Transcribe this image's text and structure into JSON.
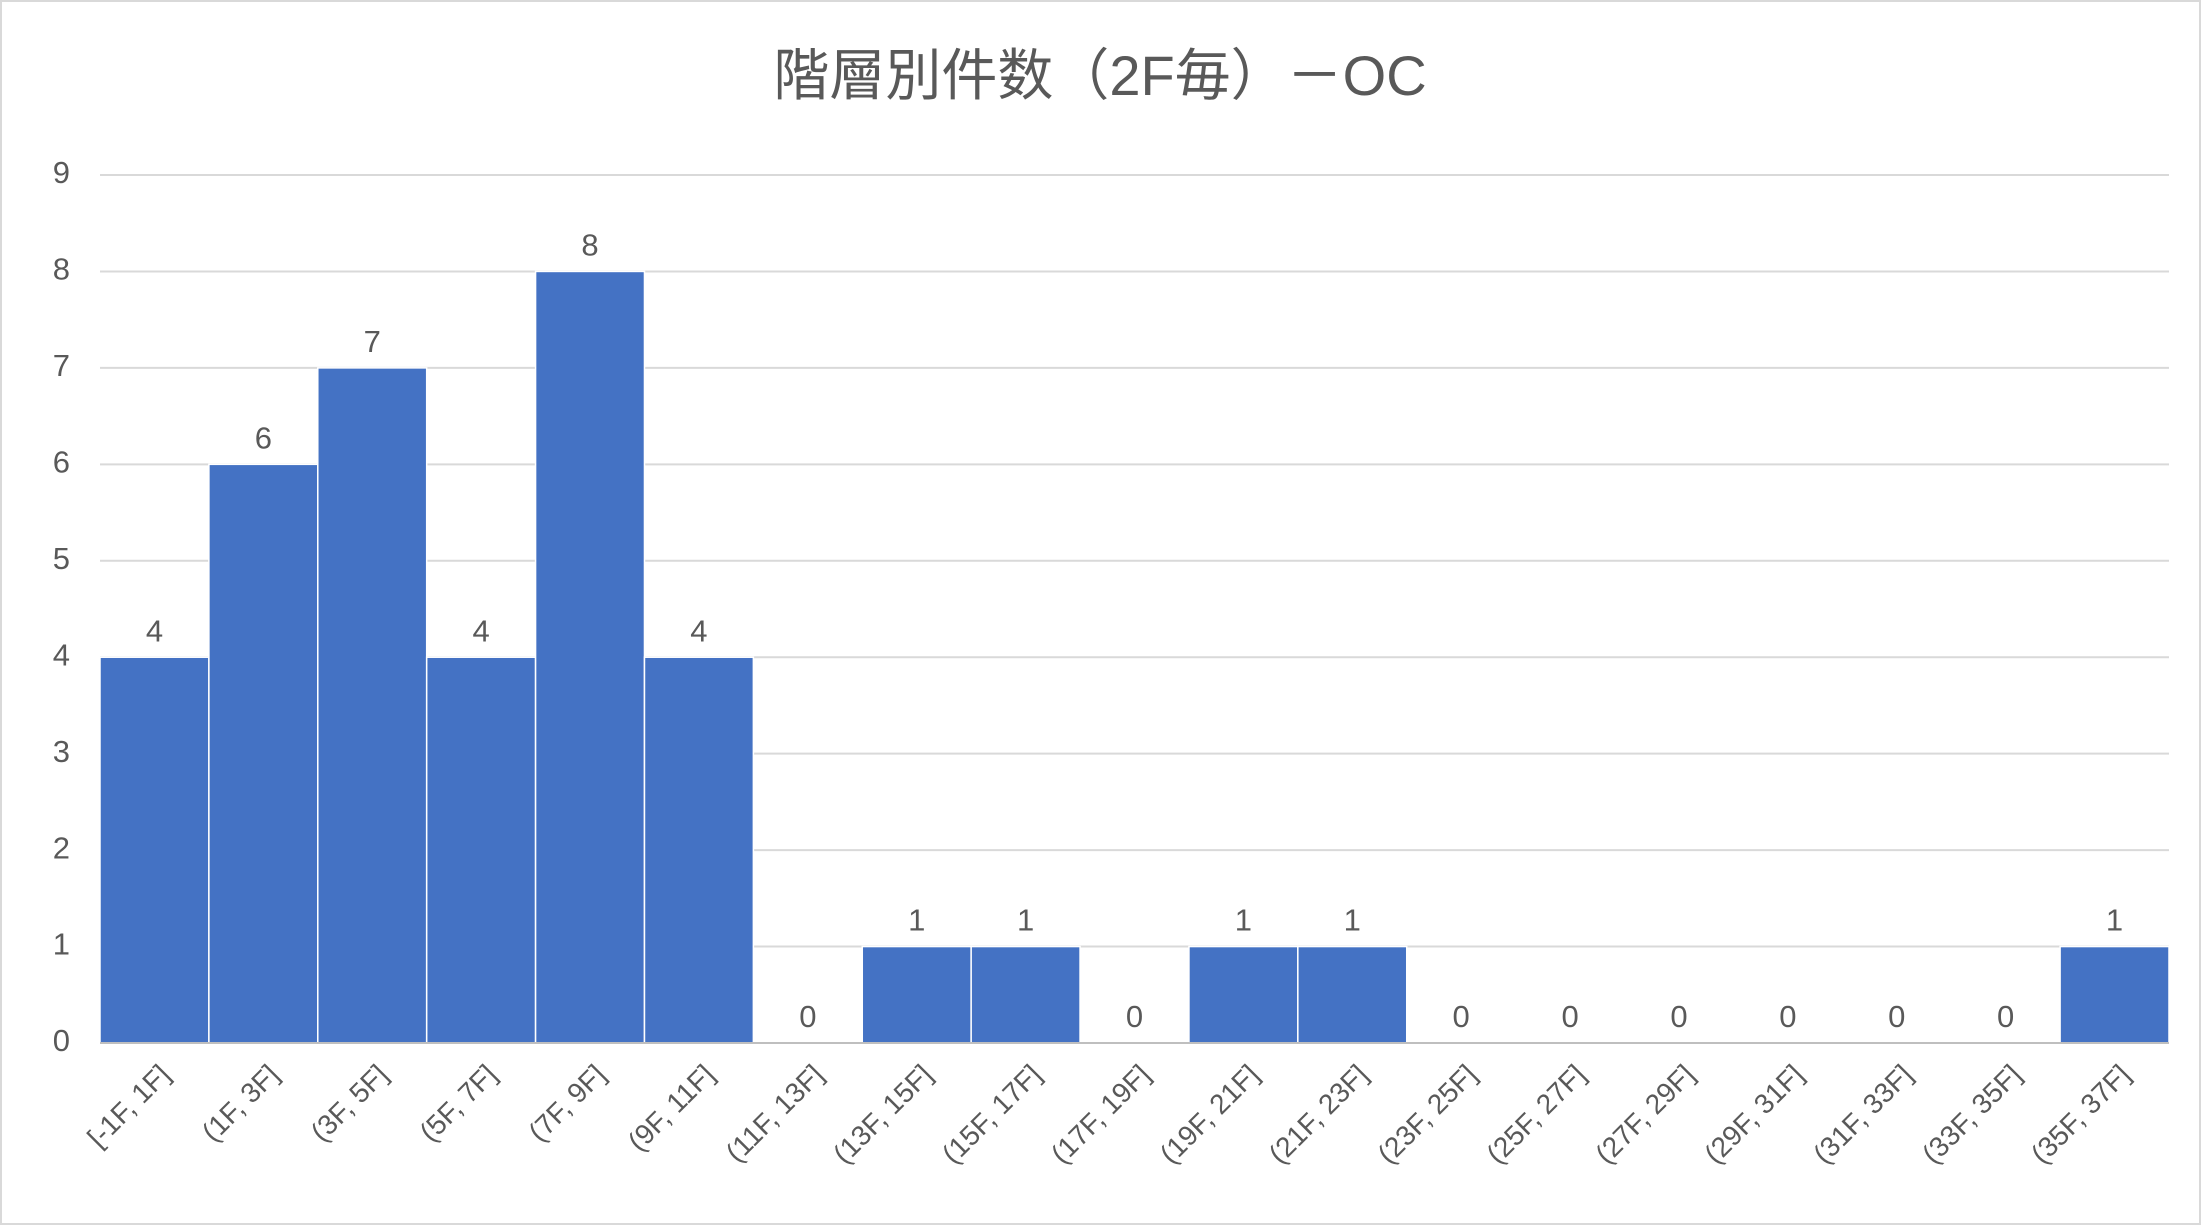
{
  "chart_data": {
    "type": "bar",
    "title": "階層別件数（2F毎）－OC",
    "categories": [
      "[-1F, 1F]",
      "(1F, 3F]",
      "(3F, 5F]",
      "(5F, 7F]",
      "(7F, 9F]",
      "(9F, 11F]",
      "(11F, 13F]",
      "(13F, 15F]",
      "(15F, 17F]",
      "(17F, 19F]",
      "(19F, 21F]",
      "(21F, 23F]",
      "(23F, 25F]",
      "(25F, 27F]",
      "(27F, 29F]",
      "(29F, 31F]",
      "(31F, 33F]",
      "(33F, 35F]",
      "(35F, 37F]"
    ],
    "values": [
      4,
      6,
      7,
      4,
      8,
      4,
      0,
      1,
      1,
      0,
      1,
      1,
      0,
      0,
      0,
      0,
      0,
      0,
      1
    ],
    "color": "#4472c4",
    "ylim": [
      0,
      9
    ],
    "yticks": [
      0,
      1,
      2,
      3,
      4,
      5,
      6,
      7,
      8,
      9
    ],
    "grid": true
  }
}
